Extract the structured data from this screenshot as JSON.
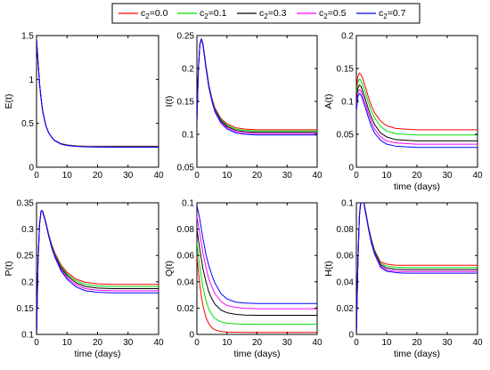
{
  "legend": {
    "entries": [
      {
        "label": "c",
        "sub": "2",
        "value": "=0.0",
        "color": "#ff0000"
      },
      {
        "label": "c",
        "sub": "2",
        "value": "=0.1",
        "color": "#00dd00"
      },
      {
        "label": "c",
        "sub": "2",
        "value": "=0.3",
        "color": "#000000"
      },
      {
        "label": "c",
        "sub": "2",
        "value": "=0.5",
        "color": "#ff00ff"
      },
      {
        "label": "c",
        "sub": "2",
        "value": "=0.7",
        "color": "#0000ff"
      }
    ]
  },
  "chart_data": [
    {
      "type": "line",
      "id": "E",
      "ylabel": "E(t)",
      "xlabel": "",
      "xlim": [
        0,
        40
      ],
      "ylim": [
        0,
        1.5
      ],
      "xticks": [
        "0",
        "10",
        "20",
        "30",
        "40"
      ],
      "xtick_values": [
        0,
        10,
        20,
        30,
        40
      ],
      "yticks": [
        "0",
        "0.5",
        "1",
        "1.5"
      ],
      "ytick_values": [
        0,
        0.5,
        1,
        1.5
      ],
      "x": [
        0,
        0.5,
        1,
        1.5,
        2,
        3,
        4,
        5,
        6,
        8,
        10,
        13,
        16,
        20,
        25,
        30,
        35,
        40
      ],
      "series": [
        {
          "name": "c2=0.0",
          "values": [
            1.45,
            1.2,
            0.95,
            0.78,
            0.64,
            0.48,
            0.39,
            0.34,
            0.305,
            0.27,
            0.255,
            0.245,
            0.24,
            0.24,
            0.24,
            0.24,
            0.24,
            0.24
          ]
        },
        {
          "name": "c2=0.1",
          "values": [
            1.45,
            1.2,
            0.95,
            0.78,
            0.64,
            0.48,
            0.39,
            0.34,
            0.304,
            0.269,
            0.253,
            0.243,
            0.238,
            0.237,
            0.237,
            0.237,
            0.237,
            0.237
          ]
        },
        {
          "name": "c2=0.3",
          "values": [
            1.45,
            1.2,
            0.95,
            0.78,
            0.64,
            0.48,
            0.39,
            0.34,
            0.303,
            0.267,
            0.251,
            0.241,
            0.236,
            0.234,
            0.234,
            0.234,
            0.234,
            0.234
          ]
        },
        {
          "name": "c2=0.5",
          "values": [
            1.45,
            1.2,
            0.95,
            0.78,
            0.64,
            0.48,
            0.39,
            0.34,
            0.302,
            0.265,
            0.249,
            0.239,
            0.234,
            0.232,
            0.231,
            0.231,
            0.231,
            0.231
          ]
        },
        {
          "name": "c2=0.7",
          "values": [
            1.45,
            1.2,
            0.95,
            0.78,
            0.64,
            0.48,
            0.39,
            0.34,
            0.301,
            0.263,
            0.247,
            0.237,
            0.232,
            0.229,
            0.228,
            0.228,
            0.228,
            0.228
          ]
        }
      ]
    },
    {
      "type": "line",
      "id": "I",
      "ylabel": "I(t)",
      "xlabel": "",
      "xlim": [
        0,
        40
      ],
      "ylim": [
        0.05,
        0.25
      ],
      "xticks": [
        "0",
        "10",
        "20",
        "30",
        "40"
      ],
      "xtick_values": [
        0,
        10,
        20,
        30,
        40
      ],
      "yticks": [
        "0.05",
        "0.1",
        "0.15",
        "0.2",
        "0.25"
      ],
      "ytick_values": [
        0.05,
        0.1,
        0.15,
        0.2,
        0.25
      ],
      "x": [
        0,
        0.5,
        1,
        1.5,
        2,
        3,
        4,
        5,
        6,
        8,
        10,
        13,
        16,
        20,
        25,
        30,
        35,
        40
      ],
      "series": [
        {
          "name": "c2=0.0",
          "values": [
            0.12,
            0.2,
            0.237,
            0.245,
            0.238,
            0.205,
            0.175,
            0.155,
            0.14,
            0.124,
            0.116,
            0.11,
            0.108,
            0.107,
            0.107,
            0.107,
            0.107,
            0.107
          ]
        },
        {
          "name": "c2=0.1",
          "values": [
            0.12,
            0.2,
            0.237,
            0.245,
            0.238,
            0.204,
            0.174,
            0.154,
            0.139,
            0.123,
            0.114,
            0.108,
            0.106,
            0.105,
            0.105,
            0.105,
            0.105,
            0.105
          ]
        },
        {
          "name": "c2=0.3",
          "values": [
            0.12,
            0.2,
            0.237,
            0.245,
            0.237,
            0.203,
            0.173,
            0.153,
            0.138,
            0.121,
            0.112,
            0.106,
            0.104,
            0.103,
            0.103,
            0.103,
            0.103,
            0.103
          ]
        },
        {
          "name": "c2=0.5",
          "values": [
            0.12,
            0.2,
            0.237,
            0.245,
            0.237,
            0.202,
            0.172,
            0.152,
            0.136,
            0.119,
            0.11,
            0.104,
            0.102,
            0.101,
            0.101,
            0.101,
            0.101,
            0.101
          ]
        },
        {
          "name": "c2=0.7",
          "values": [
            0.12,
            0.2,
            0.237,
            0.245,
            0.236,
            0.201,
            0.171,
            0.15,
            0.134,
            0.117,
            0.108,
            0.102,
            0.1,
            0.099,
            0.099,
            0.099,
            0.099,
            0.099
          ]
        }
      ]
    },
    {
      "type": "line",
      "id": "A",
      "ylabel": "A(t)",
      "xlabel": "time (days)",
      "xlim": [
        0,
        40
      ],
      "ylim": [
        0,
        0.2
      ],
      "xticks": [
        "0",
        "10",
        "20",
        "30",
        "40"
      ],
      "xtick_values": [
        0,
        10,
        20,
        30,
        40
      ],
      "yticks": [
        "0",
        "0.05",
        "0.1",
        "0.15",
        "0.2"
      ],
      "ytick_values": [
        0,
        0.05,
        0.1,
        0.15,
        0.2
      ],
      "x": [
        0,
        0.5,
        1,
        1.5,
        2,
        3,
        4,
        5,
        6,
        8,
        10,
        13,
        16,
        20,
        25,
        30,
        35,
        40
      ],
      "series": [
        {
          "name": "c2=0.0",
          "values": [
            0.12,
            0.138,
            0.143,
            0.141,
            0.136,
            0.122,
            0.106,
            0.093,
            0.083,
            0.07,
            0.063,
            0.059,
            0.058,
            0.057,
            0.057,
            0.057,
            0.057,
            0.057
          ]
        },
        {
          "name": "c2=0.1",
          "values": [
            0.11,
            0.129,
            0.134,
            0.132,
            0.127,
            0.113,
            0.098,
            0.085,
            0.075,
            0.062,
            0.055,
            0.051,
            0.05,
            0.049,
            0.049,
            0.049,
            0.049,
            0.049
          ]
        },
        {
          "name": "c2=0.3",
          "values": [
            0.1,
            0.12,
            0.125,
            0.123,
            0.117,
            0.103,
            0.088,
            0.075,
            0.065,
            0.052,
            0.046,
            0.042,
            0.041,
            0.04,
            0.04,
            0.04,
            0.04,
            0.04
          ]
        },
        {
          "name": "c2=0.5",
          "values": [
            0.092,
            0.113,
            0.118,
            0.116,
            0.11,
            0.096,
            0.081,
            0.068,
            0.058,
            0.046,
            0.04,
            0.037,
            0.036,
            0.035,
            0.035,
            0.035,
            0.035,
            0.035
          ]
        },
        {
          "name": "c2=0.7",
          "values": [
            0.085,
            0.107,
            0.112,
            0.11,
            0.104,
            0.09,
            0.075,
            0.062,
            0.052,
            0.041,
            0.035,
            0.032,
            0.031,
            0.03,
            0.03,
            0.03,
            0.03,
            0.03
          ]
        }
      ]
    },
    {
      "type": "line",
      "id": "P",
      "ylabel": "P(t)",
      "xlabel": "time (days)",
      "xlim": [
        0,
        40
      ],
      "ylim": [
        0.1,
        0.35
      ],
      "xticks": [
        "0",
        "10",
        "20",
        "30",
        "40"
      ],
      "xtick_values": [
        0,
        10,
        20,
        30,
        40
      ],
      "yticks": [
        "0.1",
        "0.15",
        "0.2",
        "0.25",
        "0.3",
        "0.35"
      ],
      "ytick_values": [
        0.1,
        0.15,
        0.2,
        0.25,
        0.3,
        0.35
      ],
      "x": [
        0,
        0.5,
        1,
        1.5,
        2,
        3,
        4,
        5,
        6,
        8,
        10,
        13,
        16,
        20,
        25,
        30,
        35,
        40
      ],
      "series": [
        {
          "name": "c2=0.0",
          "values": [
            0.1,
            0.24,
            0.31,
            0.335,
            0.335,
            0.315,
            0.29,
            0.27,
            0.255,
            0.232,
            0.218,
            0.205,
            0.199,
            0.196,
            0.195,
            0.195,
            0.195,
            0.195
          ]
        },
        {
          "name": "c2=0.1",
          "values": [
            0.1,
            0.24,
            0.31,
            0.335,
            0.335,
            0.315,
            0.289,
            0.269,
            0.253,
            0.23,
            0.215,
            0.202,
            0.195,
            0.192,
            0.191,
            0.191,
            0.191,
            0.191
          ]
        },
        {
          "name": "c2=0.3",
          "values": [
            0.1,
            0.24,
            0.31,
            0.335,
            0.334,
            0.314,
            0.288,
            0.268,
            0.251,
            0.227,
            0.212,
            0.198,
            0.191,
            0.188,
            0.187,
            0.187,
            0.187,
            0.187
          ]
        },
        {
          "name": "c2=0.5",
          "values": [
            0.1,
            0.24,
            0.31,
            0.335,
            0.334,
            0.313,
            0.287,
            0.266,
            0.249,
            0.224,
            0.208,
            0.194,
            0.187,
            0.184,
            0.183,
            0.183,
            0.183,
            0.183
          ]
        },
        {
          "name": "c2=0.7",
          "values": [
            0.1,
            0.24,
            0.31,
            0.335,
            0.333,
            0.312,
            0.286,
            0.264,
            0.247,
            0.221,
            0.205,
            0.19,
            0.183,
            0.18,
            0.179,
            0.179,
            0.179,
            0.179
          ]
        }
      ]
    },
    {
      "type": "line",
      "id": "Q",
      "ylabel": "Q(t)",
      "xlabel": "time (days)",
      "xlim": [
        0,
        40
      ],
      "ylim": [
        0,
        0.1
      ],
      "xticks": [
        "0",
        "10",
        "20",
        "30",
        "40"
      ],
      "xtick_values": [
        0,
        10,
        20,
        30,
        40
      ],
      "yticks": [
        "0",
        "0.02",
        "0.04",
        "0.06",
        "0.08",
        "0.1"
      ],
      "ytick_values": [
        0,
        0.02,
        0.04,
        0.06,
        0.08,
        0.1
      ],
      "x": [
        0,
        0.5,
        1,
        1.5,
        2,
        3,
        4,
        5,
        6,
        8,
        10,
        13,
        16,
        20,
        25,
        30,
        35,
        40
      ],
      "series": [
        {
          "name": "c2=0.0",
          "values": [
            0.06,
            0.048,
            0.037,
            0.029,
            0.022,
            0.013,
            0.008,
            0.005,
            0.0035,
            0.0022,
            0.0018,
            0.0016,
            0.0015,
            0.0015,
            0.0015,
            0.0015,
            0.0015,
            0.0015
          ]
        },
        {
          "name": "c2=0.1",
          "values": [
            0.07,
            0.06,
            0.051,
            0.043,
            0.036,
            0.026,
            0.019,
            0.015,
            0.012,
            0.0095,
            0.0085,
            0.008,
            0.0078,
            0.0077,
            0.0077,
            0.0077,
            0.0077,
            0.0077
          ]
        },
        {
          "name": "c2=0.3",
          "values": [
            0.08,
            0.072,
            0.064,
            0.057,
            0.05,
            0.04,
            0.032,
            0.027,
            0.023,
            0.0185,
            0.0165,
            0.0152,
            0.0147,
            0.0145,
            0.0145,
            0.0145,
            0.0145,
            0.0145
          ]
        },
        {
          "name": "c2=0.5",
          "values": [
            0.09,
            0.083,
            0.076,
            0.069,
            0.062,
            0.051,
            0.042,
            0.036,
            0.031,
            0.025,
            0.022,
            0.0205,
            0.0198,
            0.0195,
            0.0195,
            0.0195,
            0.0195,
            0.0195
          ]
        },
        {
          "name": "c2=0.7",
          "values": [
            0.098,
            0.093,
            0.087,
            0.08,
            0.073,
            0.061,
            0.052,
            0.045,
            0.039,
            0.031,
            0.027,
            0.0245,
            0.0238,
            0.0235,
            0.0235,
            0.0235,
            0.0235,
            0.0235
          ]
        }
      ]
    },
    {
      "type": "line",
      "id": "H",
      "ylabel": "H(t)",
      "xlabel": "time (days)",
      "xlim": [
        0,
        40
      ],
      "ylim": [
        0,
        0.1
      ],
      "xticks": [
        "0",
        "10",
        "20",
        "30",
        "40"
      ],
      "xtick_values": [
        0,
        10,
        20,
        30,
        40
      ],
      "yticks": [
        "0",
        "0.02",
        "0.04",
        "0.06",
        "0.08",
        "0.1"
      ],
      "ytick_values": [
        0,
        0.02,
        0.04,
        0.06,
        0.08,
        0.1
      ],
      "x": [
        0,
        0.5,
        1,
        1.5,
        2,
        2.5,
        3,
        4,
        5,
        6,
        8,
        10,
        13,
        16,
        20,
        25,
        30,
        35,
        40
      ],
      "series": [
        {
          "name": "c2=0.0",
          "values": [
            0.0,
            0.055,
            0.09,
            0.102,
            0.104,
            0.1,
            0.094,
            0.082,
            0.072,
            0.064,
            0.055,
            0.0535,
            0.0525,
            0.0525,
            0.0525,
            0.0525,
            0.0525,
            0.0525,
            0.0525
          ]
        },
        {
          "name": "c2=0.1",
          "values": [
            0.0,
            0.055,
            0.09,
            0.102,
            0.104,
            0.1,
            0.094,
            0.082,
            0.072,
            0.064,
            0.054,
            0.052,
            0.051,
            0.0508,
            0.0508,
            0.0508,
            0.0508,
            0.0508,
            0.0508
          ]
        },
        {
          "name": "c2=0.3",
          "values": [
            0.0,
            0.055,
            0.09,
            0.102,
            0.104,
            0.1,
            0.094,
            0.081,
            0.071,
            0.063,
            0.053,
            0.0505,
            0.0495,
            0.0492,
            0.0492,
            0.0492,
            0.0492,
            0.0492,
            0.0492
          ]
        },
        {
          "name": "c2=0.5",
          "values": [
            0.0,
            0.055,
            0.09,
            0.102,
            0.104,
            0.1,
            0.093,
            0.081,
            0.07,
            0.062,
            0.052,
            0.049,
            0.048,
            0.0478,
            0.0478,
            0.0478,
            0.0478,
            0.0478,
            0.0478
          ]
        },
        {
          "name": "c2=0.7",
          "values": [
            0.0,
            0.055,
            0.09,
            0.102,
            0.104,
            0.1,
            0.093,
            0.08,
            0.069,
            0.061,
            0.051,
            0.048,
            0.047,
            0.0465,
            0.0465,
            0.0465,
            0.0465,
            0.0465,
            0.0465
          ]
        }
      ]
    }
  ]
}
